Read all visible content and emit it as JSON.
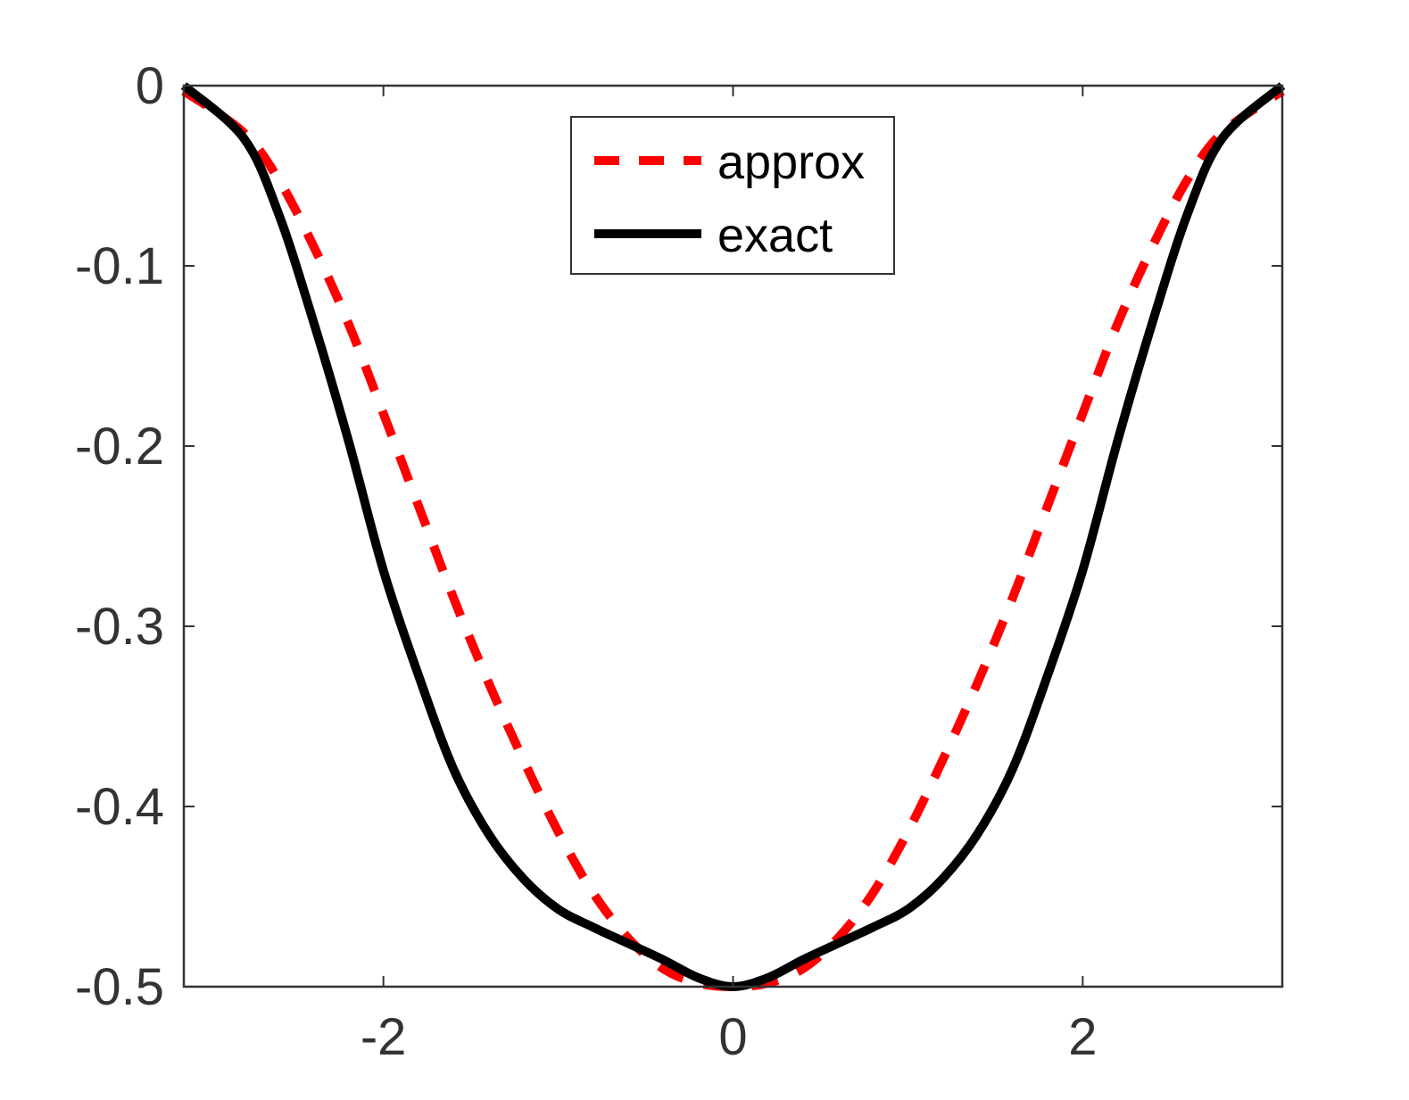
{
  "chart_data": {
    "type": "line",
    "xlim": [
      -3.14159,
      3.14159
    ],
    "ylim": [
      -0.5,
      0
    ],
    "xticks": [
      {
        "value": -2,
        "label": "-2"
      },
      {
        "value": 0,
        "label": "0"
      },
      {
        "value": 2,
        "label": "2"
      }
    ],
    "yticks": [
      {
        "value": 0,
        "label": "0"
      },
      {
        "value": -0.1,
        "label": "-0.1"
      },
      {
        "value": -0.2,
        "label": "-0.2"
      },
      {
        "value": -0.3,
        "label": "-0.3"
      },
      {
        "value": -0.4,
        "label": "-0.4"
      },
      {
        "value": -0.5,
        "label": "-0.5"
      }
    ],
    "grid": false,
    "legend_position": "top-center",
    "series": [
      {
        "name": "approx",
        "style": "dashed",
        "color": "#ff0000",
        "x": [
          -3.1416,
          -2.8,
          -2.6,
          -2.4,
          -2.2,
          -2.0,
          -1.8,
          -1.6,
          -1.4,
          -1.2,
          -1.0,
          -0.8,
          -0.6,
          -0.4,
          -0.2,
          0.0,
          0.2,
          0.4,
          0.6,
          0.8,
          1.0,
          1.2,
          1.4,
          1.6,
          1.8,
          2.0,
          2.2,
          2.4,
          2.6,
          2.8,
          3.1416
        ],
        "y": [
          -0.003,
          -0.026,
          -0.052,
          -0.089,
          -0.132,
          -0.182,
          -0.233,
          -0.284,
          -0.331,
          -0.374,
          -0.414,
          -0.448,
          -0.473,
          -0.49,
          -0.498,
          -0.5,
          -0.498,
          -0.49,
          -0.473,
          -0.448,
          -0.414,
          -0.374,
          -0.331,
          -0.284,
          -0.233,
          -0.182,
          -0.132,
          -0.089,
          -0.052,
          -0.026,
          -0.003
        ]
      },
      {
        "name": "exact",
        "style": "solid",
        "color": "#000000",
        "x": [
          -3.1416,
          -2.8,
          -2.6,
          -2.4,
          -2.2,
          -2.0,
          -1.8,
          -1.6,
          -1.4,
          -1.2,
          -1.0,
          -0.8,
          -0.6,
          -0.4,
          -0.2,
          0.0,
          0.2,
          0.4,
          0.6,
          0.8,
          1.0,
          1.2,
          1.4,
          1.6,
          1.8,
          2.0,
          2.2,
          2.4,
          2.6,
          2.8,
          3.1416
        ],
        "y": [
          0.0,
          -0.029,
          -0.071,
          -0.131,
          -0.197,
          -0.269,
          -0.327,
          -0.379,
          -0.415,
          -0.44,
          -0.457,
          -0.467,
          -0.476,
          -0.485,
          -0.495,
          -0.5,
          -0.495,
          -0.485,
          -0.476,
          -0.467,
          -0.457,
          -0.44,
          -0.415,
          -0.379,
          -0.327,
          -0.269,
          -0.197,
          -0.131,
          -0.071,
          -0.029,
          0.0
        ]
      }
    ]
  }
}
